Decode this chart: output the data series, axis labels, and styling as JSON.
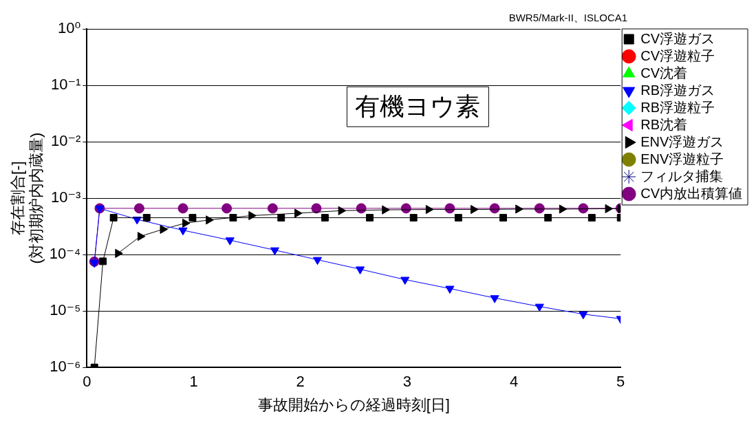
{
  "chart_data": {
    "type": "line",
    "xlabel": "事故開始からの経過時刻[日]",
    "ylabel": "存在割合[-]\n(対初期炉内内蔵量)",
    "annotations": [
      "BWR5/Mark-II、ISLOCA1",
      "有機ヨウ素"
    ],
    "xlim": [
      0,
      5
    ],
    "xticks": [
      0,
      1,
      2,
      3,
      4,
      5
    ],
    "ylim": [
      1e-06,
      1
    ],
    "yticks": [
      {
        "value": 1e-06,
        "label": "10⁻⁶"
      },
      {
        "value": 1e-05,
        "label": "10⁻⁵"
      },
      {
        "value": 0.0001,
        "label": "10⁻⁴"
      },
      {
        "value": 0.001,
        "label": "10⁻³"
      },
      {
        "value": 0.01,
        "label": "10⁻²"
      },
      {
        "value": 0.1,
        "label": "10⁻¹"
      },
      {
        "value": 1,
        "label": "10⁰"
      }
    ],
    "log": "y",
    "grid": "y",
    "legend": "right",
    "series": [
      {
        "name": "CV浮遊ガス",
        "color": "#000000",
        "marker": "square",
        "x": [
          0.07,
          0.15,
          0.25,
          0.56,
          0.99,
          1.37,
          1.82,
          2.23,
          2.65,
          3.06,
          3.48,
          3.9,
          4.32,
          4.73,
          5
        ],
        "values": [
          1e-06,
          7.6e-05,
          0.00045,
          0.00045,
          0.00045,
          0.00045,
          0.00045,
          0.00045,
          0.00045,
          0.00045,
          0.00045,
          0.00045,
          0.00045,
          0.00045,
          0.00045
        ]
      },
      {
        "name": "CV浮遊粒子",
        "color": "#ff0000",
        "marker": "circle"
      },
      {
        "name": "CV沈着",
        "color": "#00ff00",
        "marker": "triangle"
      },
      {
        "name": "RB浮遊ガス",
        "color": "#0000ff",
        "marker": "triangle-down",
        "x": [
          0.07,
          0.12,
          0.47,
          0.9,
          1.34,
          1.76,
          2.16,
          2.56,
          2.98,
          3.4,
          3.82,
          4.24,
          4.65,
          5
        ],
        "values": [
          7.2e-05,
          0.00066,
          0.00042,
          0.00027,
          0.00018,
          0.00012,
          8.1e-05,
          5.5e-05,
          3.6e-05,
          2.5e-05,
          1.7e-05,
          1.2e-05,
          8.8e-06,
          7.3e-06
        ]
      },
      {
        "name": "RB浮遊粒子",
        "color": "#00ffff",
        "marker": "diamond"
      },
      {
        "name": "RB沈着",
        "color": "#ff00ff",
        "marker": "triangle-left"
      },
      {
        "name": "ENV浮遊ガス",
        "color": "#000000",
        "marker": "triangle-right",
        "x": [
          0.29,
          0.5,
          0.71,
          0.92,
          1.14,
          1.54,
          1.97,
          2.38,
          2.79,
          3.2,
          3.62,
          4.04,
          4.45,
          4.88,
          5
        ],
        "values": [
          0.000105,
          0.00021,
          0.00028,
          0.00036,
          0.00041,
          0.00049,
          0.00054,
          0.0006,
          0.00062,
          0.00063,
          0.00063,
          0.00064,
          0.00064,
          0.00065,
          0.00065
        ]
      },
      {
        "name": "ENV浮遊粒子",
        "color": "#808000",
        "marker": "circle"
      },
      {
        "name": "フィルタ捕集",
        "color": "#000080",
        "marker": "star"
      },
      {
        "name": "CV内放出積算値",
        "color": "#800080",
        "marker": "circle",
        "x": [
          0.07,
          0.12,
          0.49,
          0.9,
          1.31,
          1.74,
          2.15,
          2.57,
          2.99,
          3.4,
          3.82,
          4.24,
          4.65,
          5
        ],
        "values": [
          7.5e-05,
          0.00066,
          0.00066,
          0.00066,
          0.00066,
          0.00066,
          0.00066,
          0.00066,
          0.00066,
          0.00066,
          0.00066,
          0.00066,
          0.00066,
          0.00066
        ]
      }
    ]
  }
}
